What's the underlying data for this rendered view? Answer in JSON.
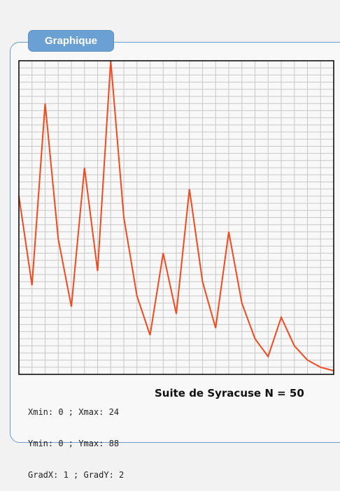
{
  "panel": {
    "tab_label": "Graphique"
  },
  "params": {
    "line1": "Xmin: 0 ; Xmax: 24",
    "line2": "Ymin: 0 ; Ymax: 88",
    "line3": "GradX: 1 ; GradY: 2"
  },
  "colors": {
    "series": "#f04a1e",
    "grid": "#c8c8c8",
    "frame": "#000000",
    "tab": "#6aa0d4",
    "panel_border": "#6a9bcf"
  },
  "chart_data": {
    "type": "line",
    "title": "Suite de Syracuse N = 50",
    "xlabel": "",
    "ylabel": "",
    "xlim": [
      0,
      24
    ],
    "ylim": [
      0,
      88
    ],
    "grid": true,
    "x_step": 1,
    "y_step": 2,
    "series": [
      {
        "values": [
          50,
          25,
          76,
          38,
          19,
          58,
          29,
          88,
          44,
          22,
          11,
          34,
          17,
          52,
          26,
          13,
          40,
          20,
          10,
          5,
          16,
          8,
          4,
          2,
          1
        ]
      }
    ]
  }
}
